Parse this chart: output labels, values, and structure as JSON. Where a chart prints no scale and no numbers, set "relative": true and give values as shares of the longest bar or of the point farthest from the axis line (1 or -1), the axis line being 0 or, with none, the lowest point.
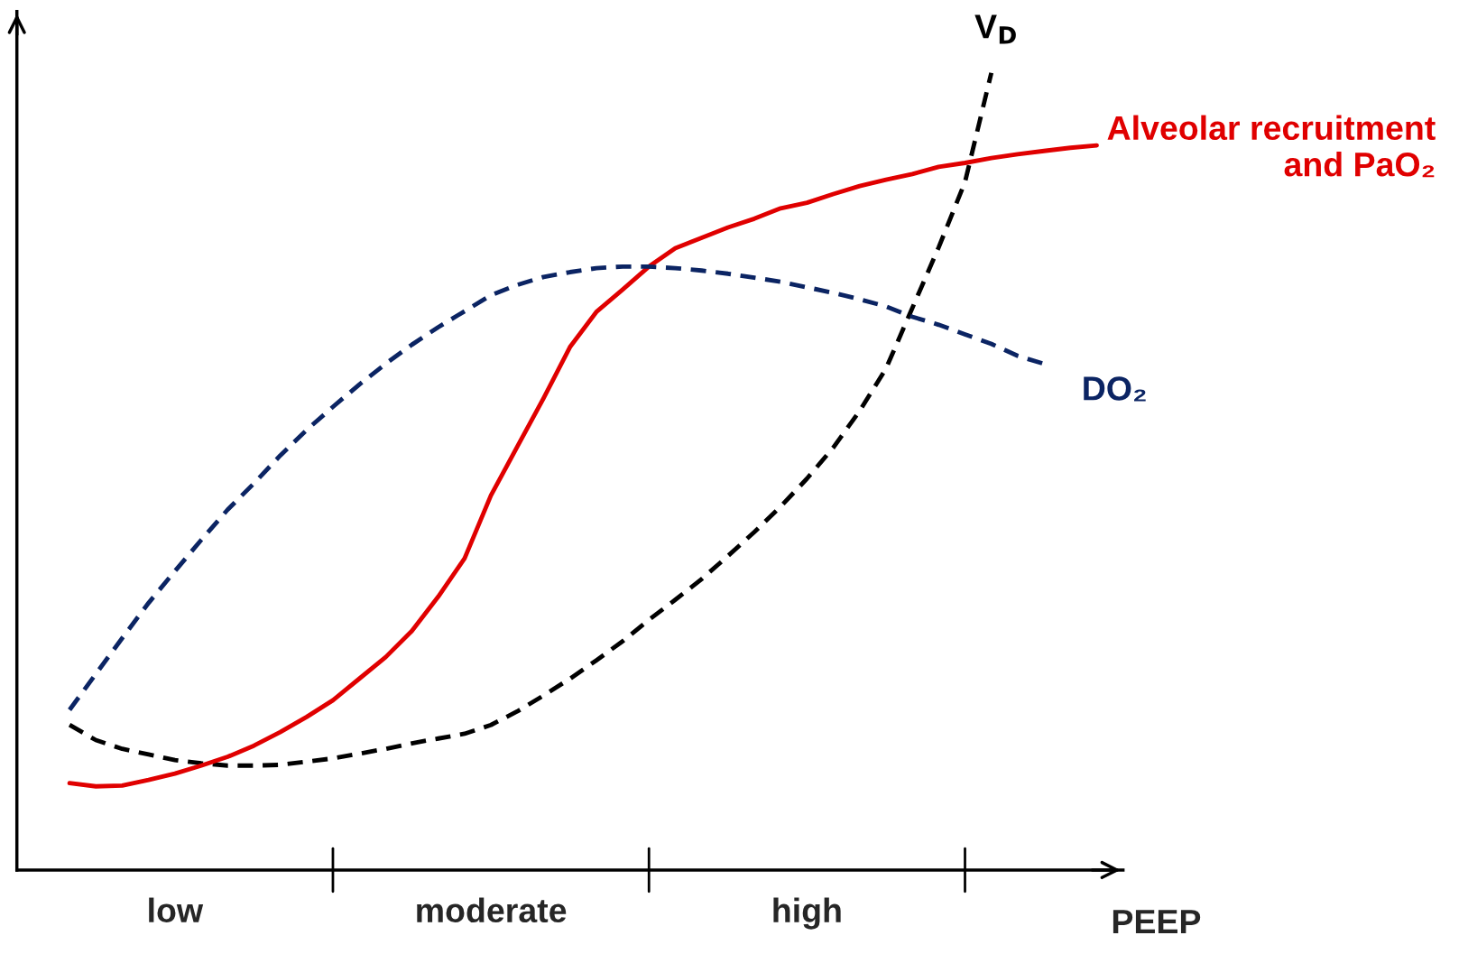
{
  "chart_data": {
    "type": "line",
    "relative": true,
    "xlabel": "PEEP",
    "legend": false,
    "categories": [
      null,
      null,
      null,
      null,
      null,
      null,
      "low",
      null,
      null,
      null,
      null,
      null,
      null,
      null,
      null,
      null,
      null,
      null,
      "moderate",
      null,
      null,
      null,
      null,
      null,
      null,
      null,
      null,
      null,
      null,
      null,
      "high",
      null,
      null,
      null,
      null,
      null,
      null,
      null,
      null,
      null,
      null,
      null,
      null
    ],
    "series": [
      {
        "name": "V$_{D}$",
        "color": "#000000",
        "line_style": "dashed",
        "values": [
          null,
          null,
          0.182,
          0.163,
          0.152,
          0.145,
          0.138,
          0.134,
          0.131,
          0.131,
          0.132,
          0.136,
          0.14,
          0.146,
          0.152,
          0.159,
          0.165,
          0.171,
          0.182,
          0.199,
          0.219,
          0.24,
          0.263,
          0.287,
          0.314,
          0.339,
          0.365,
          0.394,
          0.424,
          0.456,
          0.491,
          0.53,
          0.576,
          0.629,
          0.705,
          0.781,
          0.863,
          1.0,
          null,
          null,
          null,
          null,
          null
        ]
      },
      {
        "name": "Alveolar recruitment\nand PaO₂",
        "color": "#e00000",
        "line_style": "solid",
        "values": [
          null,
          null,
          0.109,
          0.105,
          0.106,
          0.113,
          0.121,
          0.131,
          0.142,
          0.156,
          0.173,
          0.192,
          0.213,
          0.24,
          0.267,
          0.3,
          0.343,
          0.391,
          0.47,
          0.531,
          0.592,
          0.656,
          0.7,
          0.728,
          0.757,
          0.78,
          0.793,
          0.806,
          0.817,
          0.83,
          0.837,
          0.848,
          0.858,
          0.866,
          0.873,
          0.882,
          0.887,
          0.893,
          0.898,
          0.902,
          0.906,
          0.909,
          null
        ]
      },
      {
        "name": "DO₂",
        "color": "#0b2463",
        "line_style": "dashed",
        "values": [
          null,
          null,
          0.201,
          0.246,
          0.291,
          0.335,
          0.375,
          0.414,
          0.452,
          0.485,
          0.52,
          0.552,
          0.581,
          0.609,
          0.635,
          0.659,
          0.681,
          0.701,
          0.721,
          0.734,
          0.744,
          0.75,
          0.755,
          0.757,
          0.757,
          0.755,
          0.752,
          0.748,
          0.743,
          0.738,
          0.731,
          0.724,
          0.716,
          0.707,
          0.694,
          0.684,
          0.672,
          0.66,
          0.645,
          0.635,
          null,
          null,
          null
        ]
      }
    ]
  }
}
